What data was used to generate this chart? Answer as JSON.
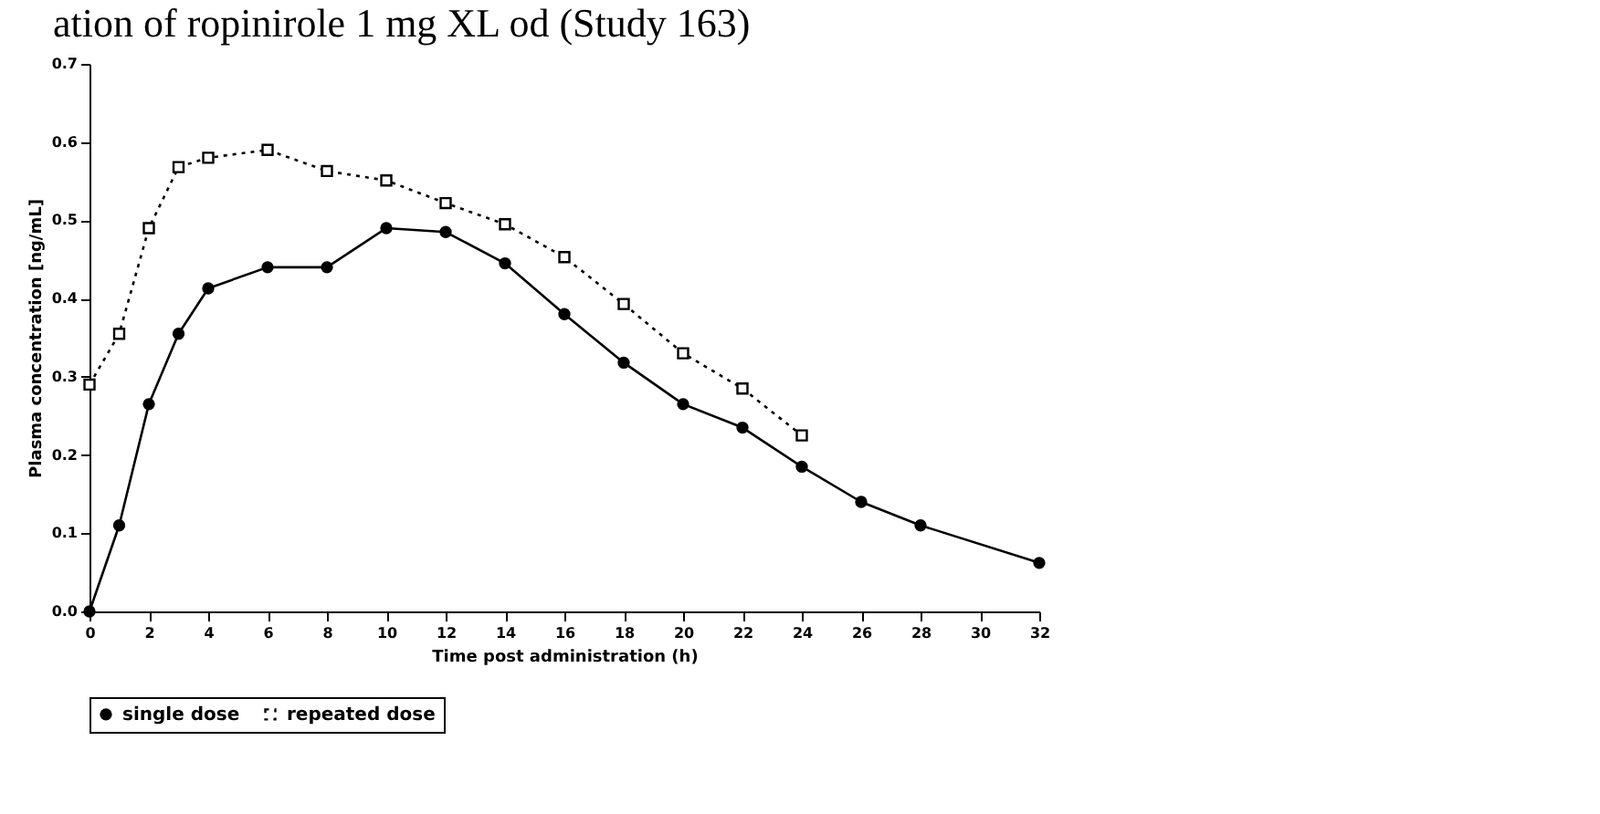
{
  "chart_data": {
    "type": "line",
    "title": "ation of ropinirole 1 mg XL od (Study 163)",
    "xlabel": "Time post administration (h)",
    "ylabel": "Plasma concentration [ng/mL]",
    "xlim": [
      0,
      32
    ],
    "xticks": [
      0,
      2,
      4,
      6,
      8,
      10,
      12,
      14,
      16,
      18,
      20,
      22,
      24,
      26,
      28,
      30,
      32
    ],
    "ylim": [
      0,
      0.7
    ],
    "yticks": [
      {
        "value": 0,
        "label": "0.0"
      },
      0.1,
      0.2,
      0.3,
      0.4,
      0.5,
      0.6,
      0.7
    ],
    "grid": false,
    "legend": "bottom",
    "series": [
      {
        "name": "single dose",
        "color": "#000000",
        "marker": "circle",
        "line_style": "solid",
        "x": [
          0,
          1,
          2,
          3,
          4,
          6,
          8,
          10,
          12,
          14,
          16,
          18,
          20,
          22,
          24,
          26,
          28,
          32
        ],
        "values": [
          0,
          0.11,
          0.265,
          0.355,
          0.413,
          0.44,
          0.44,
          0.49,
          0.485,
          0.445,
          0.38,
          0.318,
          0.265,
          0.235,
          0.185,
          0.14,
          0.11,
          0.062
        ]
      },
      {
        "name": "repeated dose",
        "color": "#000000",
        "marker": "square",
        "line_style": "dotted",
        "x": [
          0,
          1,
          2,
          3,
          4,
          6,
          8,
          10,
          12,
          14,
          16,
          18,
          20,
          22,
          24
        ],
        "values": [
          0.29,
          0.355,
          0.49,
          0.568,
          0.58,
          0.59,
          0.563,
          0.551,
          0.522,
          0.495,
          0.453,
          0.393,
          0.33,
          0.285,
          0.225
        ]
      }
    ]
  }
}
